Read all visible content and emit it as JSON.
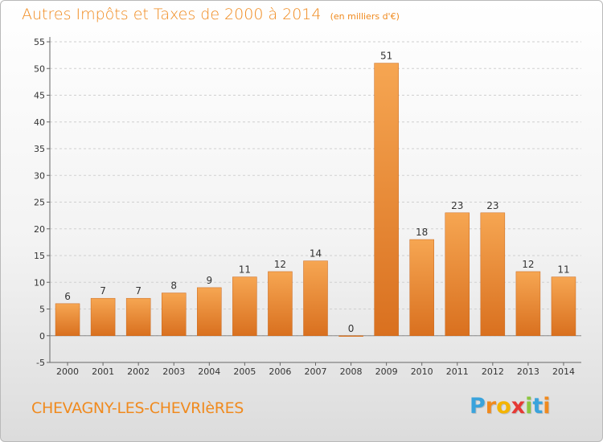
{
  "header": {
    "title": "Autres Impôts et Taxes de 2000 à 2014",
    "subtitle": "(en milliers d'€)"
  },
  "footer": {
    "commune": "CHEVAGNY-LES-CHEVRIèRES",
    "logo_letters": [
      "P",
      "r",
      "o",
      "x",
      "i",
      "t",
      "i"
    ],
    "logo_colors": [
      "#3aa3dc",
      "#f08a1e",
      "#f4b400",
      "#e53935",
      "#8cc63f",
      "#3aa3dc",
      "#f08a1e"
    ]
  },
  "colors": {
    "bar_light": "#f6a652",
    "bar_dark": "#d9701f",
    "title": "#f08a1e",
    "grid": "#d0d0d0"
  },
  "chart_data": {
    "type": "bar",
    "title": "Autres Impôts et Taxes de 2000 à 2014",
    "subtitle": "(en milliers d'€)",
    "categories": [
      "2000",
      "2001",
      "2002",
      "2003",
      "2004",
      "2005",
      "2006",
      "2007",
      "2008",
      "2009",
      "2010",
      "2011",
      "2012",
      "2013",
      "2014"
    ],
    "values": [
      6,
      7,
      7,
      8,
      9,
      11,
      12,
      14,
      0,
      51,
      18,
      23,
      23,
      12,
      11
    ],
    "ylim": [
      -5,
      55
    ],
    "yticks": [
      -5,
      0,
      5,
      10,
      15,
      20,
      25,
      30,
      35,
      40,
      45,
      50,
      55
    ],
    "grid": "horizontal dashed",
    "xlabel": "",
    "ylabel": ""
  }
}
